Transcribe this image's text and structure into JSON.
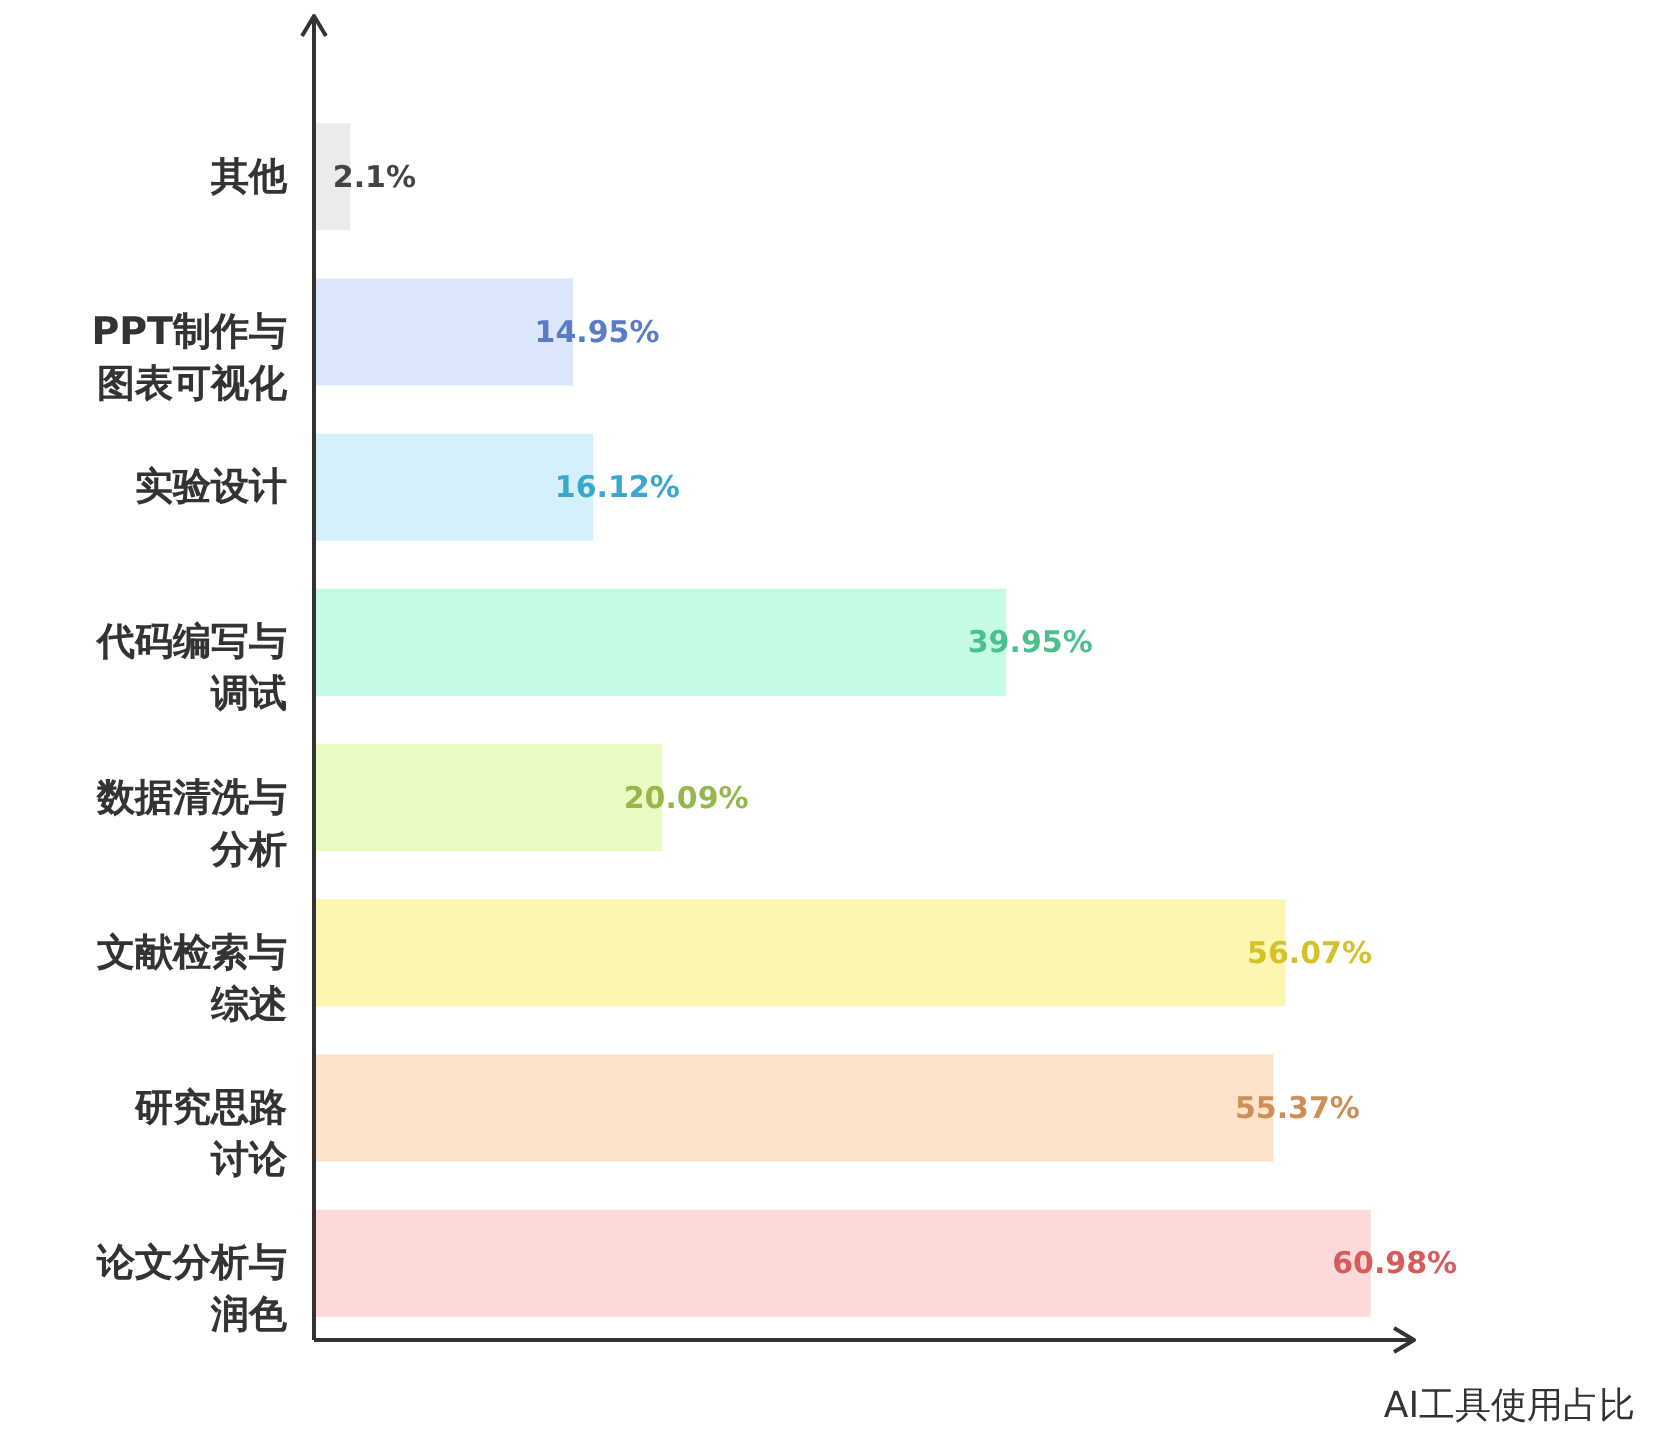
{
  "chart_data": {
    "type": "bar",
    "orientation": "horizontal",
    "xlabel": "AI工具使用占比",
    "categories": [
      "其他",
      "PPT制作与图表可视化",
      "实验设计",
      "代码编写与调试",
      "数据清洗与分析",
      "文献检索与综述",
      "研究思路讨论",
      "论文分析与润色"
    ],
    "values": [
      2.1,
      14.95,
      16.12,
      39.95,
      20.09,
      56.07,
      55.37,
      60.98
    ],
    "value_labels": [
      "2.1%",
      "14.95%",
      "16.12%",
      "39.95%",
      "20.09%",
      "56.07%",
      "55.37%",
      "60.98%"
    ],
    "colors": [
      "#ebebeb",
      "#dce6fa",
      "#d4f1fb",
      "#c5fae3",
      "#e8fbc0",
      "#fdf6b0",
      "#fde3cc",
      "#fdd9d9"
    ],
    "tick_labels": "y"
  }
}
